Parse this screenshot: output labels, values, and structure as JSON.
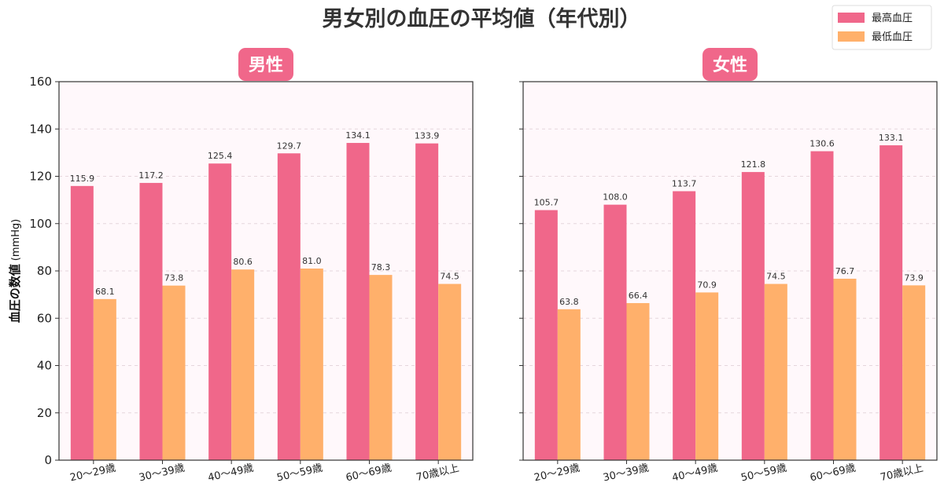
{
  "chart_data": {
    "type": "bar",
    "title": "男女別の血圧の平均値（年代別）",
    "ylabel": "血圧の数値",
    "ylabel_unit": "(mmHg)",
    "ylim": [
      0,
      160
    ],
    "yticks": [
      "0",
      "20",
      "40",
      "60",
      "80",
      "100",
      "120",
      "140",
      "160"
    ],
    "grid": "horizontal-dashed",
    "legend_position": "top-right",
    "legend": [
      {
        "name": "最高血圧",
        "color": "#f0678a"
      },
      {
        "name": "最低血圧",
        "color": "#ffb06b"
      }
    ],
    "categories": [
      "20～29歳",
      "30～39歳",
      "40～49歳",
      "50～59歳",
      "60～69歳",
      "70歳以上"
    ],
    "panels": [
      {
        "title": "男性",
        "series": [
          {
            "name": "最高血圧",
            "values": [
              115.9,
              117.2,
              125.4,
              129.7,
              134.1,
              133.9
            ]
          },
          {
            "name": "最低血圧",
            "values": [
              68.1,
              73.8,
              80.6,
              81.0,
              78.3,
              74.5
            ]
          }
        ]
      },
      {
        "title": "女性",
        "series": [
          {
            "name": "最高血圧",
            "values": [
              105.7,
              108.0,
              113.7,
              121.8,
              130.6,
              133.1
            ]
          },
          {
            "name": "最低血圧",
            "values": [
              63.8,
              66.4,
              70.9,
              74.5,
              76.7,
              73.9
            ]
          }
        ]
      }
    ],
    "colors": {
      "badge": "#f0678a",
      "plot_background": "#fff8fb",
      "grid": "#e6d6dc"
    }
  }
}
